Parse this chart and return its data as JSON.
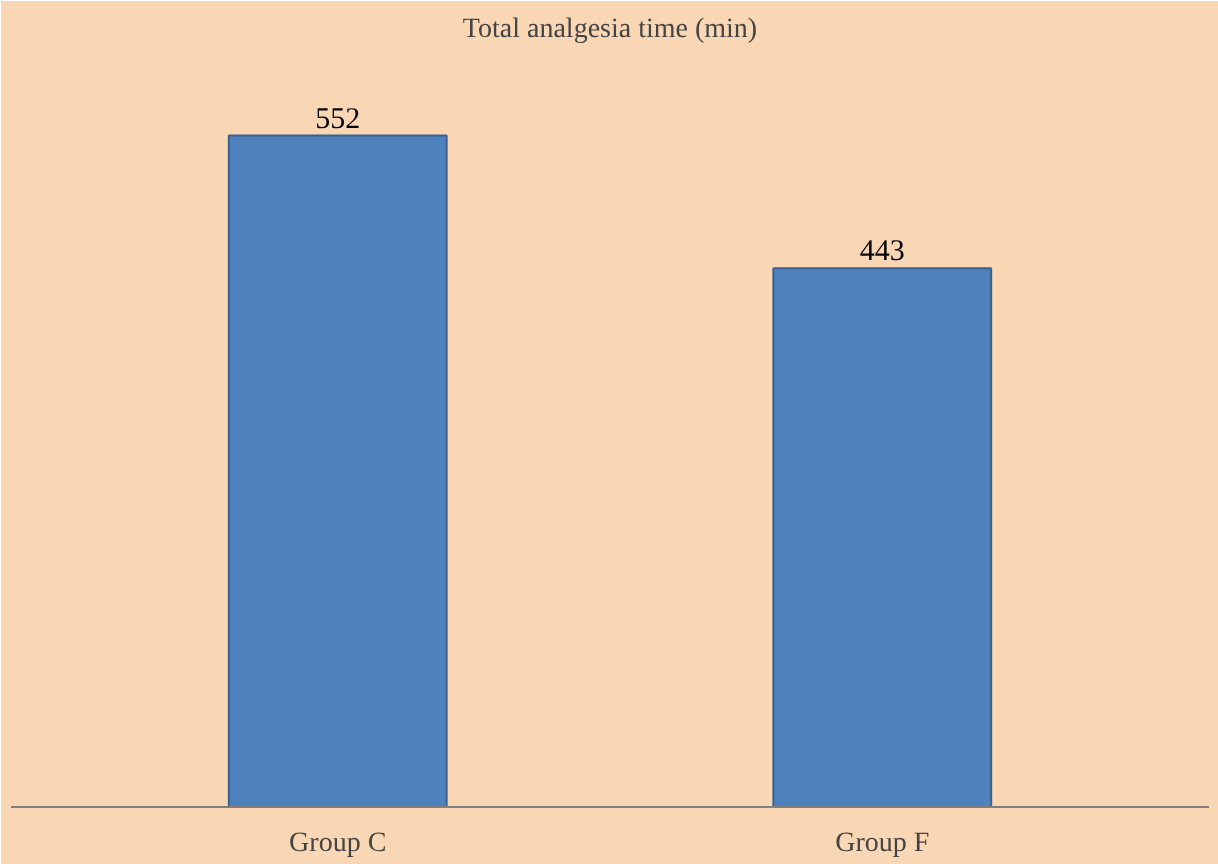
{
  "chart_data": {
    "type": "bar",
    "title": "Total analgesia time (min)",
    "categories": [
      "Group C",
      "Group F"
    ],
    "values": [
      552,
      443
    ],
    "color": "#4f81bd",
    "data_labels": true
  }
}
